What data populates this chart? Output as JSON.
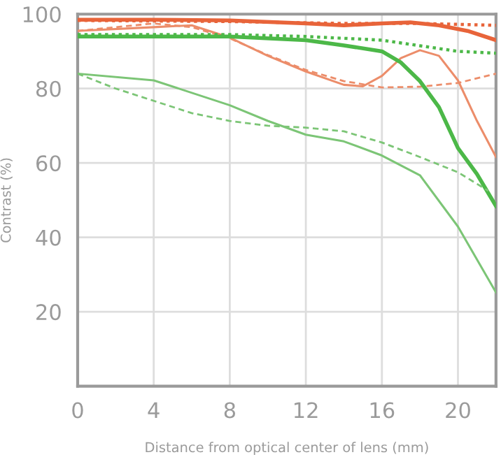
{
  "chart_data": {
    "type": "line",
    "xlabel": "Distance from optical center of lens (mm)",
    "ylabel": "Contrast (%)",
    "xlim": [
      0,
      22
    ],
    "ylim": [
      0,
      100
    ],
    "xticks": [
      0,
      4,
      8,
      12,
      16,
      20
    ],
    "yticks": [
      {
        "value": 0,
        "label": null
      },
      20,
      40,
      60,
      80,
      100
    ],
    "grid": true,
    "marker": "none",
    "series": [
      {
        "color": "#e8643a",
        "line_style": "solid",
        "x": [
          0,
          4,
          8,
          12,
          14,
          16,
          17.5,
          19,
          20.5,
          22
        ],
        "values": [
          98.5,
          98.5,
          98.3,
          97.5,
          97,
          97.5,
          97.8,
          97,
          95.5,
          93
        ]
      },
      {
        "color": "#e8643a",
        "line_style": "dotted",
        "x": [
          0,
          8,
          14,
          18,
          22
        ],
        "values": [
          98.3,
          98,
          97.5,
          97.5,
          97
        ]
      },
      {
        "color": "#ec8d6a",
        "line_style": "solid",
        "x": [
          0,
          4,
          6,
          8,
          10,
          12,
          14,
          15,
          16,
          17,
          18,
          19,
          20,
          21,
          22
        ],
        "values": [
          95.5,
          96.5,
          97,
          93.7,
          88.8,
          84.6,
          81,
          80.6,
          83.4,
          88.2,
          90.3,
          88.8,
          82.2,
          71.3,
          61.6
        ]
      },
      {
        "color": "#ec8d6a",
        "line_style": "dashed",
        "x": [
          0,
          4,
          6,
          8,
          10,
          12,
          14,
          16,
          18,
          20,
          22
        ],
        "values": [
          95.5,
          97.5,
          96.5,
          93.5,
          89,
          85,
          82,
          80.3,
          80.5,
          81.5,
          84
        ]
      },
      {
        "color": "#4cb848",
        "line_style": "solid",
        "x": [
          0,
          4,
          8,
          12,
          14,
          16,
          17,
          18,
          19,
          20,
          21,
          22
        ],
        "values": [
          94,
          94,
          94,
          93,
          91.6,
          90,
          87,
          82,
          75,
          64,
          57,
          48.4
        ]
      },
      {
        "color": "#4cb848",
        "line_style": "dotted",
        "x": [
          0,
          8,
          12,
          16,
          18,
          20,
          22
        ],
        "values": [
          94.5,
          94.5,
          94,
          93,
          91.5,
          90,
          89.5
        ]
      },
      {
        "color": "#7cc576",
        "line_style": "solid",
        "x": [
          0,
          4,
          8,
          10,
          12,
          14,
          16,
          18,
          20,
          22
        ],
        "values": [
          84,
          82.2,
          75.5,
          71.3,
          67.6,
          65.8,
          62,
          56.7,
          42.9,
          25.2
        ]
      },
      {
        "color": "#7cc576",
        "line_style": "dashed",
        "x": [
          0,
          2,
          4,
          6,
          8,
          10,
          12,
          14,
          16,
          18,
          20,
          21.6
        ],
        "values": [
          84,
          80,
          76.7,
          73.4,
          71.3,
          70,
          69.5,
          68.5,
          65.5,
          61.6,
          57.5,
          52.5
        ]
      }
    ]
  }
}
